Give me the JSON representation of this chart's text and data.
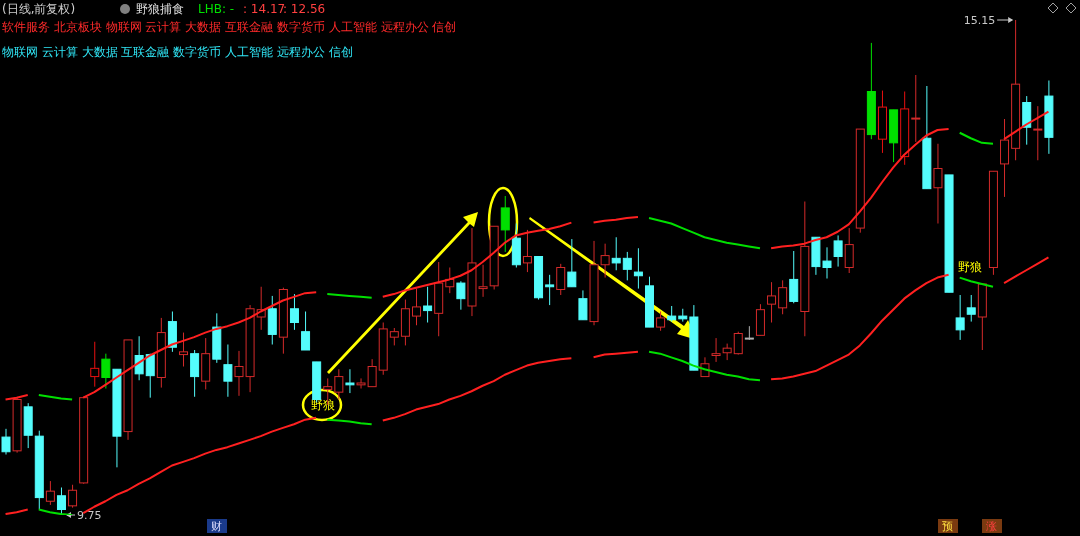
{
  "chart_data": {
    "type": "candlestick",
    "title": "(日线,前复权)",
    "subtitle": "野狼捕食",
    "annotations": [
      "LHB: -",
      ": 14.17",
      ": 12.56",
      "软件服务 北京板块 物联网 云计算 大数据 互联金融 数字货币 人工智能 远程办公 信创",
      "物联网 云计算 大数据 互联金融 数字货币 人工智能 远程办公 信创",
      "财",
      "预",
      "涨",
      "15.15",
      "9.75",
      "野狼",
      "野狼"
    ],
    "categories": [
      null,
      null,
      null,
      null,
      null,
      null,
      null,
      null,
      null,
      null,
      null,
      null,
      null,
      null,
      null,
      null,
      null,
      null,
      null,
      null,
      null,
      null,
      null,
      null,
      null,
      null,
      null,
      null,
      null,
      null,
      null,
      null,
      null,
      null,
      null,
      null,
      null,
      null,
      null,
      null,
      null,
      null,
      null,
      null,
      null,
      null,
      null,
      null,
      null,
      null,
      null,
      null,
      null,
      null,
      null,
      null,
      null,
      null,
      null,
      null,
      null,
      null,
      null,
      null,
      null,
      null,
      null,
      null,
      null,
      null,
      null,
      null,
      null,
      null,
      null,
      null,
      null,
      null,
      null,
      null,
      null,
      null,
      null,
      null,
      null,
      null,
      null,
      null,
      null,
      null,
      null,
      null,
      null,
      null,
      null
    ],
    "ohlc": [
      [
        10.6,
        10.69,
        10.41,
        10.44
      ],
      [
        10.45,
        11.03,
        10.43,
        11.01
      ],
      [
        10.93,
        10.97,
        10.48,
        10.62
      ],
      [
        10.61,
        10.67,
        9.81,
        9.94
      ],
      [
        9.9,
        10.12,
        9.86,
        10.01
      ],
      [
        9.96,
        10.05,
        9.75,
        9.81
      ],
      [
        9.85,
        10.08,
        9.83,
        10.02
      ],
      [
        10.1,
        11.04,
        10.09,
        11.03
      ],
      [
        11.26,
        11.64,
        11.15,
        11.35
      ],
      [
        11.45,
        11.51,
        11.13,
        11.25
      ],
      [
        11.34,
        11.34,
        10.27,
        10.61
      ],
      [
        10.66,
        11.66,
        10.57,
        11.66
      ],
      [
        11.49,
        11.7,
        11.22,
        11.29
      ],
      [
        11.5,
        11.51,
        11.03,
        11.27
      ],
      [
        11.25,
        11.9,
        11.14,
        11.74
      ],
      [
        11.86,
        11.97,
        11.53,
        11.58
      ],
      [
        11.5,
        11.74,
        11.37,
        11.53
      ],
      [
        11.51,
        11.55,
        11.04,
        11.26
      ],
      [
        11.21,
        11.68,
        11.12,
        11.51
      ],
      [
        11.8,
        11.95,
        11.41,
        11.45
      ],
      [
        11.39,
        11.61,
        11.04,
        11.21
      ],
      [
        11.26,
        11.54,
        11.05,
        11.37
      ],
      [
        11.26,
        12.04,
        11.09,
        12.0
      ],
      [
        11.91,
        12.24,
        11.77,
        11.99
      ],
      [
        12.0,
        12.14,
        11.61,
        11.72
      ],
      [
        11.69,
        12.23,
        11.51,
        12.21
      ],
      [
        12.0,
        12.16,
        11.77,
        11.85
      ],
      [
        11.75,
        11.97,
        11.55,
        11.55
      ],
      [
        11.42,
        11.42,
        10.98,
        11.01
      ],
      [
        11.12,
        11.24,
        10.95,
        11.15
      ],
      [
        11.09,
        11.34,
        11.01,
        11.26
      ],
      [
        11.19,
        11.34,
        11.08,
        11.17
      ],
      [
        11.17,
        11.24,
        11.13,
        11.19
      ],
      [
        11.15,
        11.45,
        11.15,
        11.37
      ],
      [
        11.33,
        11.85,
        11.28,
        11.78
      ],
      [
        11.69,
        11.79,
        11.6,
        11.75
      ],
      [
        11.7,
        12.1,
        11.6,
        12.0
      ],
      [
        11.92,
        12.22,
        11.82,
        12.02
      ],
      [
        12.03,
        12.24,
        11.85,
        11.98
      ],
      [
        11.95,
        12.51,
        11.7,
        12.28
      ],
      [
        12.24,
        12.45,
        12.17,
        12.32
      ],
      [
        12.28,
        12.3,
        11.99,
        12.11
      ],
      [
        12.03,
        12.88,
        11.92,
        12.5
      ],
      [
        12.22,
        12.48,
        12.13,
        12.24
      ],
      [
        12.25,
        12.9,
        12.21,
        12.9
      ],
      [
        13.1,
        13.23,
        12.62,
        12.86
      ],
      [
        12.77,
        12.93,
        12.45,
        12.48
      ],
      [
        12.5,
        12.86,
        12.4,
        12.57
      ],
      [
        12.57,
        12.57,
        12.1,
        12.12
      ],
      [
        12.26,
        12.37,
        12.04,
        12.24
      ],
      [
        12.21,
        12.49,
        12.15,
        12.45
      ],
      [
        12.4,
        12.76,
        12.24,
        12.24
      ],
      [
        12.11,
        12.2,
        11.88,
        11.88
      ],
      [
        11.86,
        12.74,
        11.82,
        12.48
      ],
      [
        12.48,
        12.71,
        12.34,
        12.58
      ],
      [
        12.55,
        12.78,
        12.42,
        12.5
      ],
      [
        12.55,
        12.62,
        12.31,
        12.43
      ],
      [
        12.4,
        12.66,
        12.22,
        12.36
      ],
      [
        12.25,
        12.35,
        11.8,
        11.8
      ],
      [
        11.8,
        11.97,
        11.76,
        11.9
      ],
      [
        11.92,
        12.03,
        11.86,
        11.88
      ],
      [
        11.92,
        12.0,
        11.86,
        11.89
      ],
      [
        11.91,
        12.04,
        11.33,
        11.33
      ],
      [
        11.26,
        11.47,
        11.26,
        11.4
      ],
      [
        11.49,
        11.68,
        11.42,
        11.51
      ],
      [
        11.52,
        11.62,
        11.44,
        11.57
      ],
      [
        11.51,
        11.75,
        11.5,
        11.73
      ],
      [
        11.68,
        11.81,
        11.66,
        11.68
      ],
      [
        11.71,
        12.05,
        11.71,
        11.99
      ],
      [
        12.05,
        12.29,
        11.85,
        12.14
      ],
      [
        12.01,
        12.31,
        11.94,
        12.23
      ],
      [
        12.32,
        12.63,
        12.06,
        12.08
      ],
      [
        11.97,
        13.17,
        11.7,
        12.68
      ],
      [
        12.78,
        12.78,
        12.37,
        12.46
      ],
      [
        12.52,
        12.67,
        12.33,
        12.45
      ],
      [
        12.74,
        12.8,
        12.46,
        12.57
      ],
      [
        12.45,
        12.88,
        12.39,
        12.7
      ],
      [
        12.88,
        13.96,
        12.83,
        13.96
      ],
      [
        14.37,
        14.9,
        13.85,
        13.9
      ],
      [
        13.85,
        14.38,
        13.7,
        14.2
      ],
      [
        14.17,
        14.17,
        13.6,
        13.81
      ],
      [
        13.66,
        14.37,
        13.57,
        14.18
      ],
      [
        14.07,
        14.55,
        13.82,
        14.08
      ],
      [
        13.86,
        14.43,
        13.31,
        13.31
      ],
      [
        13.32,
        13.8,
        12.93,
        13.53
      ],
      [
        13.46,
        13.46,
        12.18,
        12.18
      ],
      [
        11.9,
        12.15,
        11.66,
        11.77
      ],
      [
        12.01,
        12.15,
        11.86,
        11.94
      ],
      [
        11.91,
        12.27,
        11.55,
        12.27
      ],
      [
        12.45,
        13.5,
        12.37,
        13.5
      ],
      [
        13.58,
        14.07,
        13.22,
        13.84
      ],
      [
        13.75,
        15.15,
        13.62,
        14.45
      ],
      [
        14.25,
        14.32,
        13.79,
        13.98
      ],
      [
        13.95,
        14.21,
        13.62,
        13.96
      ],
      [
        14.32,
        14.49,
        13.69,
        13.87
      ]
    ],
    "colors": [
      "#54fcfc",
      "#d42a2a",
      "#54fcfc",
      "#54fcfc",
      "#d42a2a",
      "#54fcfc",
      "#d42a2a",
      "#d42a2a",
      "#e81010",
      "#00e000",
      "#54fcfc",
      "#d42a2a",
      "#54fcfc",
      "#54fcfc",
      "#d42a2a",
      "#54fcfc",
      "#d42a2a",
      "#54fcfc",
      "#d42a2a",
      "#54fcfc",
      "#54fcfc",
      "#d42a2a",
      "#d42a2a",
      "#d42a2a",
      "#54fcfc",
      "#d42a2a",
      "#54fcfc",
      "#54fcfc",
      "#54fcfc",
      "#d42a2a",
      "#d42a2a",
      "#54fcfc",
      "#d42a2a",
      "#d42a2a",
      "#d42a2a",
      "#d42a2a",
      "#d42a2a",
      "#d42a2a",
      "#54fcfc",
      "#d42a2a",
      "#d42a2a",
      "#54fcfc",
      "#d42a2a",
      "#d42a2a",
      "#d42a2a",
      "#00e000",
      "#54fcfc",
      "#d42a2a",
      "#54fcfc",
      "#54fcfc",
      "#d42a2a",
      "#54fcfc",
      "#54fcfc",
      "#d42a2a",
      "#d42a2a",
      "#54fcfc",
      "#54fcfc",
      "#54fcfc",
      "#54fcfc",
      "#d42a2a",
      "#54fcfc",
      "#54fcfc",
      "#54fcfc",
      "#d42a2a",
      "#d42a2a",
      "#d42a2a",
      "#d42a2a",
      "#b0b0b0",
      "#d42a2a",
      "#d42a2a",
      "#d42a2a",
      "#54fcfc",
      "#d42a2a",
      "#54fcfc",
      "#54fcfc",
      "#54fcfc",
      "#d42a2a",
      "#d42a2a",
      "#00e000",
      "#e81010",
      "#00e000",
      "#e81010",
      "#d42a2a",
      "#54fcfc",
      "#d42a2a",
      "#54fcfc",
      "#54fcfc",
      "#54fcfc",
      "#d42a2a",
      "#d42a2a",
      "#d42a2a",
      "#d42a2a",
      "#54fcfc",
      "#d42a2a",
      "#54fcfc"
    ],
    "series": [
      {
        "type": "line",
        "color": "#ff2020",
        "values": [
          11.01,
          11.03,
          11.06,
          null,
          null,
          null,
          null,
          11.03,
          11.09,
          11.17,
          11.25,
          11.33,
          11.41,
          11.49,
          11.55,
          11.61,
          11.65,
          11.69,
          11.74,
          11.78,
          11.81,
          11.85,
          11.9,
          11.97,
          12.03,
          12.09,
          12.13,
          12.17,
          12.18,
          null,
          null,
          null,
          null,
          null,
          12.13,
          12.16,
          12.2,
          12.23,
          12.26,
          12.29,
          12.32,
          12.36,
          12.42,
          12.51,
          12.61,
          12.72,
          12.8,
          12.83,
          12.85,
          12.87,
          12.9,
          12.94,
          null,
          12.94,
          12.96,
          12.97,
          12.99,
          13.0,
          null,
          null,
          null,
          null,
          null,
          null,
          null,
          null,
          null,
          null,
          null,
          12.66,
          12.68,
          12.69,
          12.71,
          12.75,
          12.78,
          12.84,
          12.92,
          13.06,
          13.21,
          13.38,
          13.54,
          13.68,
          13.79,
          13.89,
          13.95,
          13.96,
          null,
          null,
          null,
          null,
          13.85,
          13.93,
          14.01,
          14.08,
          14.15
        ]
      },
      {
        "type": "line",
        "color": "#00e000",
        "values": [
          null,
          null,
          null,
          11.06,
          11.04,
          11.02,
          11.01,
          null,
          null,
          null,
          null,
          null,
          null,
          null,
          null,
          null,
          null,
          null,
          null,
          null,
          null,
          null,
          null,
          null,
          null,
          null,
          null,
          null,
          null,
          12.16,
          12.15,
          12.14,
          12.13,
          12.12,
          null,
          null,
          null,
          null,
          null,
          null,
          null,
          null,
          null,
          null,
          null,
          null,
          null,
          null,
          null,
          null,
          null,
          null,
          null,
          null,
          null,
          null,
          null,
          null,
          12.99,
          12.96,
          12.93,
          12.88,
          12.83,
          12.78,
          12.75,
          12.72,
          12.7,
          12.68,
          12.66,
          null,
          null,
          null,
          null,
          null,
          null,
          null,
          null,
          null,
          null,
          null,
          null,
          null,
          null,
          null,
          null,
          null,
          13.92,
          13.86,
          13.81,
          13.8,
          null,
          null,
          null,
          null,
          null
        ]
      },
      {
        "type": "line",
        "color": "#ff2020",
        "values": [
          9.76,
          9.78,
          9.81,
          null,
          null,
          null,
          null,
          9.77,
          9.84,
          9.9,
          9.97,
          10.02,
          10.09,
          10.15,
          10.22,
          10.29,
          10.33,
          10.37,
          10.42,
          10.46,
          10.49,
          10.53,
          10.57,
          10.61,
          10.66,
          10.7,
          10.74,
          10.79,
          10.81,
          null,
          null,
          null,
          null,
          null,
          10.78,
          10.81,
          10.85,
          10.9,
          10.93,
          10.96,
          11.01,
          11.05,
          11.1,
          11.16,
          11.21,
          11.28,
          11.33,
          11.38,
          11.41,
          11.43,
          11.45,
          11.46,
          null,
          11.47,
          11.5,
          11.51,
          11.52,
          11.53,
          null,
          null,
          null,
          null,
          null,
          null,
          null,
          null,
          null,
          null,
          null,
          11.23,
          11.24,
          11.26,
          11.29,
          11.32,
          11.38,
          11.44,
          11.5,
          11.6,
          11.73,
          11.87,
          11.99,
          12.11,
          12.2,
          12.28,
          12.34,
          12.37,
          null,
          null,
          null,
          null,
          12.28,
          12.35,
          12.42,
          12.49,
          12.56
        ]
      },
      {
        "type": "line",
        "color": "#00e000",
        "values": [
          null,
          null,
          null,
          9.81,
          9.78,
          9.76,
          9.75,
          null,
          null,
          null,
          null,
          null,
          null,
          null,
          null,
          null,
          null,
          null,
          null,
          null,
          null,
          null,
          null,
          null,
          null,
          null,
          null,
          null,
          null,
          10.79,
          10.78,
          10.77,
          10.75,
          10.74,
          null,
          null,
          null,
          null,
          null,
          null,
          null,
          null,
          null,
          null,
          null,
          null,
          null,
          null,
          null,
          null,
          null,
          null,
          null,
          null,
          null,
          null,
          null,
          null,
          11.53,
          11.51,
          11.47,
          11.43,
          11.38,
          11.34,
          11.31,
          11.28,
          11.26,
          11.23,
          11.22,
          null,
          null,
          null,
          null,
          null,
          null,
          null,
          null,
          null,
          null,
          null,
          null,
          null,
          null,
          null,
          null,
          null,
          12.34,
          12.3,
          12.27,
          12.24,
          null,
          null,
          null,
          null,
          null
        ]
      }
    ]
  }
}
